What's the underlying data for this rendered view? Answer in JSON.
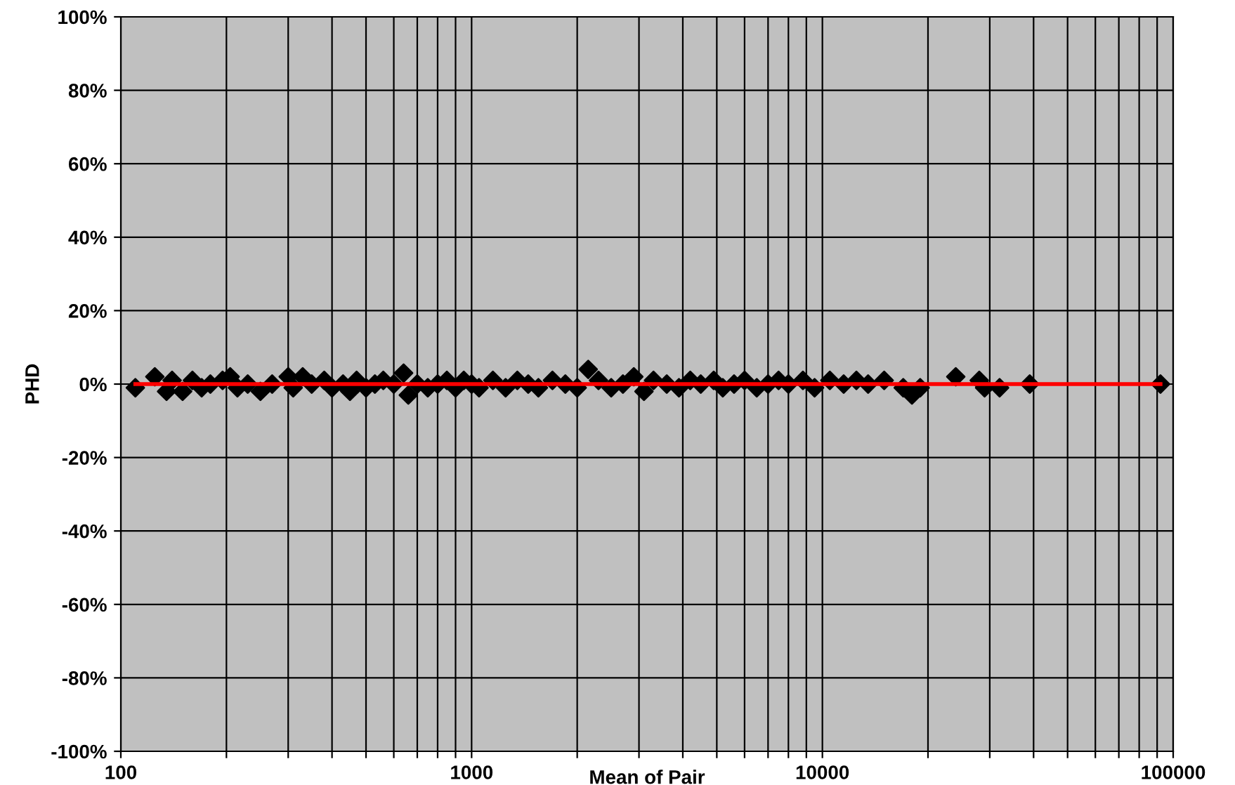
{
  "chart_data": {
    "type": "scatter",
    "xlabel": "Mean of Pair",
    "ylabel": "PHD",
    "log": "x",
    "grid": true,
    "legend": false,
    "xlim": [
      100,
      100000
    ],
    "ylim": [
      -100,
      100
    ],
    "xticks": [
      100,
      {
        "value": 200,
        "label": null
      },
      {
        "value": 300,
        "label": null
      },
      {
        "value": 400,
        "label": null
      },
      {
        "value": 500,
        "label": null
      },
      {
        "value": 600,
        "label": null
      },
      {
        "value": 700,
        "label": null
      },
      {
        "value": 800,
        "label": null
      },
      {
        "value": 900,
        "label": null
      },
      1000,
      {
        "value": 2000,
        "label": null
      },
      {
        "value": 3000,
        "label": null
      },
      {
        "value": 4000,
        "label": null
      },
      {
        "value": 5000,
        "label": null
      },
      {
        "value": 6000,
        "label": null
      },
      {
        "value": 7000,
        "label": null
      },
      {
        "value": 8000,
        "label": null
      },
      {
        "value": 9000,
        "label": null
      },
      10000,
      {
        "value": 20000,
        "label": null
      },
      {
        "value": 30000,
        "label": null
      },
      {
        "value": 40000,
        "label": null
      },
      {
        "value": 50000,
        "label": null
      },
      {
        "value": 60000,
        "label": null
      },
      {
        "value": 70000,
        "label": null
      },
      {
        "value": 80000,
        "label": null
      },
      {
        "value": 90000,
        "label": null
      },
      100000
    ],
    "yticks": [
      {
        "value": -100,
        "label": "-100%"
      },
      {
        "value": -80,
        "label": "-80%"
      },
      {
        "value": -60,
        "label": "-60%"
      },
      {
        "value": -40,
        "label": "-40%"
      },
      {
        "value": -20,
        "label": "-20%"
      },
      {
        "value": 0,
        "label": "0%"
      },
      {
        "value": 20,
        "label": "20%"
      },
      {
        "value": 40,
        "label": "40%"
      },
      {
        "value": 60,
        "label": "60%"
      },
      {
        "value": 80,
        "label": "80%"
      },
      {
        "value": 100,
        "label": "100%"
      }
    ],
    "series": [
      {
        "color": "#000000",
        "marker": "diamond",
        "x": [
          110,
          125,
          135,
          140,
          150,
          160,
          170,
          180,
          195,
          205,
          215,
          230,
          250,
          270,
          300,
          310,
          330,
          350,
          380,
          400,
          430,
          450,
          470,
          500,
          530,
          560,
          600,
          640,
          660,
          700,
          750,
          800,
          850,
          900,
          950,
          1000,
          1050,
          1150,
          1250,
          1350,
          1450,
          1550,
          1700,
          1850,
          2000,
          2150,
          2300,
          2500,
          2700,
          2900,
          3100,
          3300,
          3600,
          3900,
          4200,
          4500,
          4900,
          5200,
          5600,
          6000,
          6500,
          7000,
          7500,
          8000,
          8800,
          9500,
          10500,
          11500,
          12500,
          13500,
          15000,
          17000,
          18000,
          19000,
          24000,
          28000,
          29000,
          32000,
          39000,
          92000
        ],
        "values": [
          -1,
          2,
          -2,
          1,
          -2,
          1,
          -1,
          0,
          1,
          2,
          -1,
          0,
          -2,
          0,
          2,
          -1,
          2,
          0,
          1,
          -1,
          0,
          -2,
          1,
          -1,
          0,
          1,
          0,
          3,
          -3,
          0,
          -1,
          0,
          1,
          -1,
          1,
          0,
          -1,
          1,
          -1,
          1,
          0,
          -1,
          1,
          0,
          -1,
          4,
          1,
          -1,
          0,
          2,
          -2,
          1,
          0,
          -1,
          1,
          0,
          1,
          -1,
          0,
          1,
          -1,
          0,
          1,
          0,
          1,
          -1,
          1,
          0,
          1,
          0,
          1,
          -1,
          -3,
          -1,
          2,
          1,
          -1,
          -1,
          0,
          0
        ]
      },
      {
        "type": "line",
        "color": "#ff0000",
        "marker": "none",
        "line_style": "solid",
        "x": [
          110,
          92000
        ],
        "values": [
          0,
          0
        ]
      }
    ]
  }
}
